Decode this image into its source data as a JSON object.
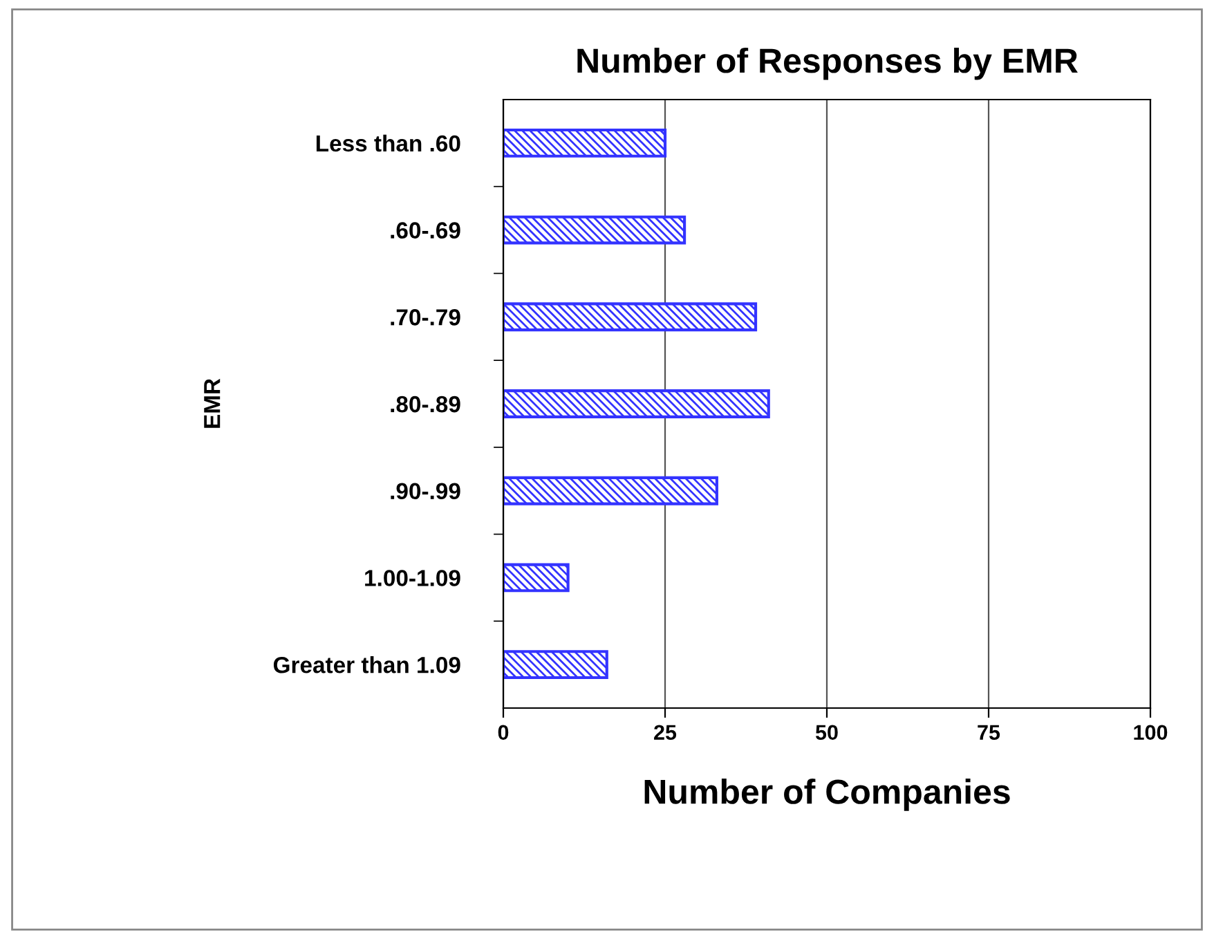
{
  "chart_data": {
    "type": "bar",
    "orientation": "horizontal",
    "title": "Number of Responses by EMR",
    "xlabel": "Number of Companies",
    "ylabel": "EMR",
    "categories": [
      "Less than .60",
      ".60-.69",
      ".70-.79",
      ".80-.89",
      ".90-.99",
      "1.00-1.09",
      "Greater than 1.09"
    ],
    "values": [
      25,
      28,
      39,
      41,
      33,
      10,
      16
    ],
    "color": "#3333ff",
    "xlim": [
      0,
      100
    ],
    "xticks": [
      0,
      25,
      50,
      75,
      100
    ],
    "grid": "x"
  }
}
